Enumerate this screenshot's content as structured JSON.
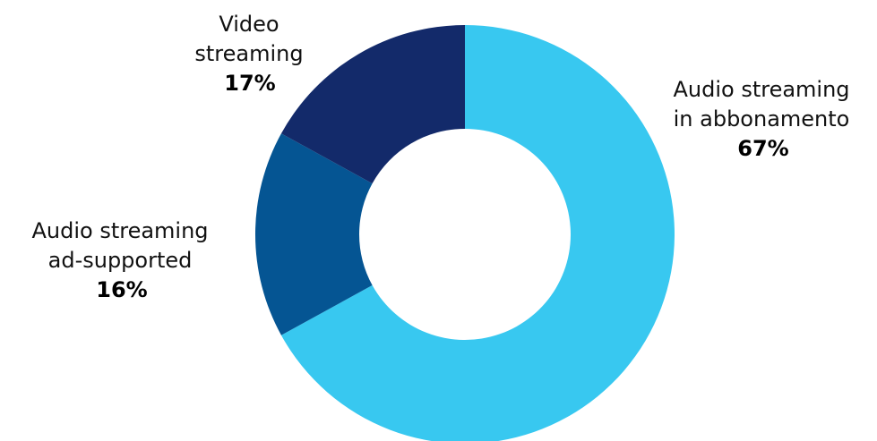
{
  "chart_data": {
    "type": "pie",
    "donut": true,
    "title": "",
    "start_angle_deg": 0,
    "direction": "clockwise",
    "slices": [
      {
        "lines": [
          "Audio streaming",
          "in abbonamento"
        ],
        "value": 67,
        "value_label": "67%",
        "color": "#38C8F0"
      },
      {
        "lines": [
          "Audio streaming",
          "ad-supported"
        ],
        "value": 16,
        "value_label": "16%",
        "color": "#055593"
      },
      {
        "lines": [
          "Video",
          "streaming"
        ],
        "value": 17,
        "value_label": "17%",
        "color": "#132A6A"
      }
    ]
  }
}
